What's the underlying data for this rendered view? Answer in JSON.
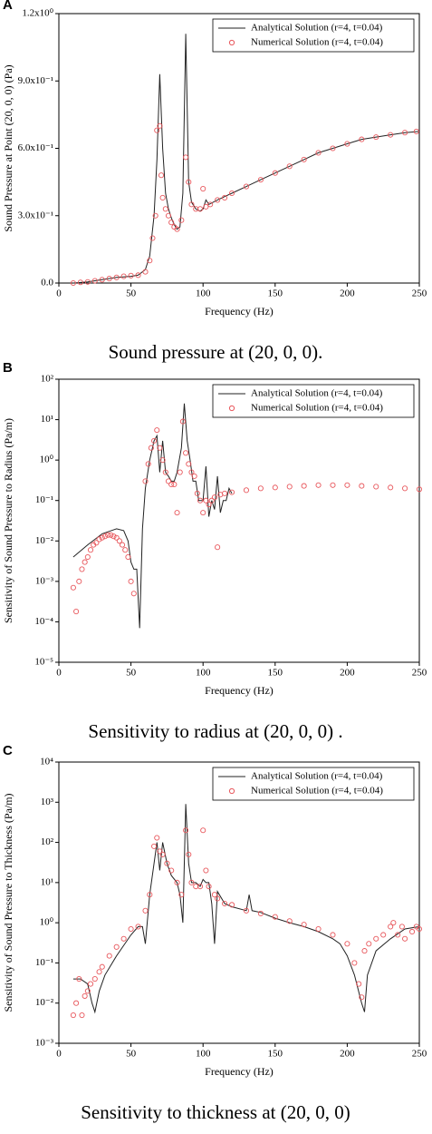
{
  "chart_data": [
    {
      "type": "line",
      "panel": "A",
      "caption": "Sound pressure at (20, 0, 0).",
      "xlabel": "Frequency (Hz)",
      "ylabel": "Sound Pressure at Point (20, 0, 0) (Pa)",
      "xlim": [
        0,
        250
      ],
      "xticks": [
        0,
        50,
        100,
        150,
        200,
        250
      ],
      "ylim": [
        0,
        1.2
      ],
      "yticks": [
        {
          "value": 0,
          "label": "0.0"
        },
        {
          "value": 0.3,
          "label": "3.0x10⁻¹"
        },
        {
          "value": 0.6,
          "label": "6.0x10⁻¹"
        },
        {
          "value": 0.9,
          "label": "9.0x10⁻¹"
        },
        {
          "value": 1.2,
          "label": "1.2x10⁰"
        }
      ],
      "log": false,
      "legend": "upper right",
      "series": [
        {
          "name": "Analytical Solution (r=4, t=0.04)",
          "color": "#222222",
          "style": "line",
          "x": [
            10,
            20,
            30,
            40,
            50,
            55,
            60,
            63,
            66,
            68,
            70,
            72,
            74,
            76,
            78,
            80,
            82,
            84,
            86,
            88,
            90,
            92,
            95,
            98,
            100,
            102,
            104,
            110,
            120,
            130,
            140,
            150,
            160,
            170,
            180,
            190,
            200,
            210,
            220,
            230,
            240,
            250
          ],
          "values": [
            0.0,
            0.005,
            0.015,
            0.025,
            0.03,
            0.035,
            0.06,
            0.12,
            0.3,
            0.55,
            0.93,
            0.6,
            0.4,
            0.33,
            0.29,
            0.26,
            0.24,
            0.25,
            0.4,
            1.11,
            0.45,
            0.36,
            0.33,
            0.32,
            0.33,
            0.37,
            0.35,
            0.37,
            0.4,
            0.43,
            0.46,
            0.49,
            0.52,
            0.55,
            0.58,
            0.6,
            0.62,
            0.64,
            0.65,
            0.66,
            0.67,
            0.675
          ]
        },
        {
          "name": "Numerical Solution (r=4, t=0.04)",
          "color": "#e8585d",
          "style": "markers",
          "x": [
            10,
            15,
            20,
            25,
            30,
            35,
            40,
            45,
            50,
            55,
            60,
            63,
            65,
            67,
            68,
            70,
            71,
            72,
            74,
            76,
            78,
            80,
            82,
            85,
            88,
            90,
            92,
            95,
            98,
            100,
            102,
            105,
            110,
            115,
            120,
            130,
            140,
            150,
            160,
            170,
            180,
            190,
            200,
            210,
            220,
            230,
            240,
            248
          ],
          "values": [
            0.0,
            0.003,
            0.005,
            0.01,
            0.015,
            0.02,
            0.025,
            0.03,
            0.033,
            0.035,
            0.05,
            0.1,
            0.2,
            0.3,
            0.68,
            0.7,
            0.48,
            0.38,
            0.33,
            0.3,
            0.27,
            0.25,
            0.24,
            0.28,
            0.56,
            0.45,
            0.35,
            0.33,
            0.33,
            0.42,
            0.34,
            0.35,
            0.37,
            0.38,
            0.4,
            0.43,
            0.46,
            0.49,
            0.52,
            0.55,
            0.58,
            0.6,
            0.62,
            0.64,
            0.65,
            0.66,
            0.67,
            0.675
          ]
        }
      ]
    },
    {
      "type": "line",
      "panel": "B",
      "caption": "Sensitivity to radius at (20, 0, 0) .",
      "xlabel": "Frequency (Hz)",
      "ylabel": "Sensitivity of Sound Pressure to Radius (Pa/m)",
      "xlim": [
        0,
        250
      ],
      "xticks": [
        0,
        50,
        100,
        150,
        200,
        250
      ],
      "ylim": [
        1e-05,
        100
      ],
      "yticks": [
        {
          "value": 1e-05,
          "label": "10⁻⁵"
        },
        {
          "value": 0.0001,
          "label": "10⁻⁴"
        },
        {
          "value": 0.001,
          "label": "10⁻³"
        },
        {
          "value": 0.01,
          "label": "10⁻²"
        },
        {
          "value": 0.1,
          "label": "10⁻¹"
        },
        {
          "value": 1,
          "label": "10⁰"
        },
        {
          "value": 10,
          "label": "10¹"
        },
        {
          "value": 100,
          "label": "10²"
        }
      ],
      "log": true,
      "legend": "upper right",
      "series": [
        {
          "name": "Analytical Solution (r=4, t=0.04)",
          "color": "#222222",
          "style": "line",
          "x": [
            10,
            20,
            30,
            40,
            45,
            48,
            50,
            52,
            54,
            56,
            58,
            60,
            63,
            66,
            68,
            70,
            72,
            74,
            76,
            78,
            80,
            82,
            85,
            87,
            89,
            91,
            93,
            95,
            97,
            100,
            102,
            104,
            106,
            108,
            110,
            112,
            114,
            116,
            118,
            120
          ],
          "values": [
            0.004,
            0.008,
            0.015,
            0.02,
            0.018,
            0.01,
            0.003,
            0.002,
            0.002,
            7e-05,
            0.02,
            0.2,
            1,
            3,
            4,
            0.5,
            3,
            0.5,
            0.4,
            0.3,
            0.3,
            0.5,
            2,
            25,
            3,
            1,
            0.3,
            0.3,
            0.1,
            0.1,
            0.7,
            0.04,
            0.1,
            0.06,
            0.4,
            0.05,
            0.1,
            0.1,
            0.2,
            0.15
          ]
        },
        {
          "name": "Numerical Solution (r=4, t=0.04)",
          "color": "#e8585d",
          "style": "markers",
          "x": [
            10,
            12,
            14,
            16,
            18,
            20,
            22,
            24,
            26,
            28,
            30,
            32,
            34,
            36,
            38,
            40,
            42,
            44,
            46,
            48,
            50,
            52,
            60,
            62,
            64,
            66,
            68,
            70,
            72,
            74,
            76,
            78,
            80,
            82,
            84,
            86,
            88,
            90,
            92,
            94,
            96,
            98,
            100,
            102,
            104,
            106,
            108,
            110,
            112,
            115,
            120,
            130,
            140,
            150,
            160,
            170,
            180,
            190,
            200,
            210,
            220,
            230,
            240,
            250
          ],
          "values": [
            0.0007,
            0.00018,
            0.001,
            0.002,
            0.003,
            0.004,
            0.006,
            0.008,
            0.009,
            0.011,
            0.012,
            0.013,
            0.014,
            0.014,
            0.013,
            0.012,
            0.01,
            0.008,
            0.006,
            0.004,
            0.001,
            0.0005,
            0.3,
            0.8,
            2,
            3,
            5.5,
            2,
            1,
            0.5,
            0.3,
            0.25,
            0.25,
            0.05,
            0.5,
            9,
            1.5,
            0.8,
            0.5,
            0.4,
            0.15,
            0.1,
            0.05,
            0.1,
            0.08,
            0.1,
            0.12,
            0.007,
            0.14,
            0.15,
            0.16,
            0.18,
            0.2,
            0.21,
            0.22,
            0.23,
            0.24,
            0.24,
            0.24,
            0.23,
            0.22,
            0.21,
            0.2,
            0.19
          ]
        }
      ]
    },
    {
      "type": "line",
      "panel": "C",
      "caption": "Sensitivity to thickness at (20, 0, 0)",
      "xlabel": "Frequency (Hz)",
      "ylabel": "Sensitivity of Sound Pressure to Thickness (Pa/m)",
      "xlim": [
        0,
        250
      ],
      "xticks": [
        0,
        50,
        100,
        150,
        200,
        250
      ],
      "ylim": [
        0.001,
        10000
      ],
      "yticks": [
        {
          "value": 0.001,
          "label": "10⁻³"
        },
        {
          "value": 0.01,
          "label": "10⁻²"
        },
        {
          "value": 0.1,
          "label": "10⁻¹"
        },
        {
          "value": 1,
          "label": "10⁰"
        },
        {
          "value": 10,
          "label": "10¹"
        },
        {
          "value": 100,
          "label": "10²"
        },
        {
          "value": 1000,
          "label": "10³"
        },
        {
          "value": 10000,
          "label": "10⁴"
        }
      ],
      "log": true,
      "legend": "upper right",
      "series": [
        {
          "name": "Analytical Solution (r=4, t=0.04)",
          "color": "#222222",
          "style": "line",
          "x": [
            10,
            15,
            20,
            23,
            25,
            28,
            32,
            40,
            50,
            55,
            58,
            60,
            63,
            66,
            68,
            70,
            72,
            75,
            78,
            82,
            84,
            86,
            88,
            90,
            92,
            95,
            98,
            100,
            102,
            104,
            106,
            108,
            110,
            115,
            120,
            130,
            132,
            134,
            140,
            150,
            160,
            170,
            180,
            190,
            195,
            200,
            205,
            210,
            212,
            214,
            220,
            230,
            240,
            250
          ],
          "values": [
            0.04,
            0.04,
            0.03,
            0.01,
            0.006,
            0.02,
            0.05,
            0.15,
            0.5,
            0.8,
            0.8,
            0.3,
            5,
            30,
            100,
            20,
            100,
            30,
            15,
            10,
            5,
            1,
            900,
            30,
            10,
            10,
            8,
            12,
            10,
            10,
            3,
            0.3,
            6,
            3,
            2.5,
            2,
            5,
            2,
            1.8,
            1.3,
            1,
            0.8,
            0.6,
            0.4,
            0.3,
            0.15,
            0.05,
            0.01,
            0.006,
            0.05,
            0.2,
            0.4,
            0.7,
            0.8
          ]
        },
        {
          "name": "Numerical Solution (r=4, t=0.04)",
          "color": "#e8585d",
          "style": "markers",
          "x": [
            10,
            12,
            14,
            16,
            18,
            20,
            22,
            25,
            28,
            30,
            35,
            40,
            45,
            50,
            55,
            60,
            63,
            66,
            68,
            70,
            72,
            75,
            78,
            82,
            85,
            88,
            90,
            92,
            95,
            98,
            100,
            102,
            104,
            108,
            110,
            115,
            120,
            130,
            140,
            150,
            160,
            170,
            180,
            190,
            200,
            205,
            208,
            210,
            212,
            215,
            220,
            225,
            230,
            232,
            235,
            238,
            240,
            245,
            248,
            250
          ],
          "values": [
            0.005,
            0.01,
            0.04,
            0.005,
            0.015,
            0.02,
            0.03,
            0.04,
            0.06,
            0.08,
            0.15,
            0.25,
            0.4,
            0.7,
            0.8,
            2,
            5,
            80,
            130,
            60,
            50,
            30,
            20,
            10,
            5,
            200,
            50,
            10,
            8,
            8,
            200,
            20,
            8,
            5,
            4,
            3,
            2.8,
            2,
            1.7,
            1.4,
            1.1,
            0.9,
            0.7,
            0.5,
            0.3,
            0.1,
            0.03,
            0.014,
            0.2,
            0.3,
            0.4,
            0.5,
            0.8,
            1,
            0.5,
            0.8,
            0.4,
            0.6,
            0.8,
            0.7
          ]
        }
      ]
    }
  ]
}
